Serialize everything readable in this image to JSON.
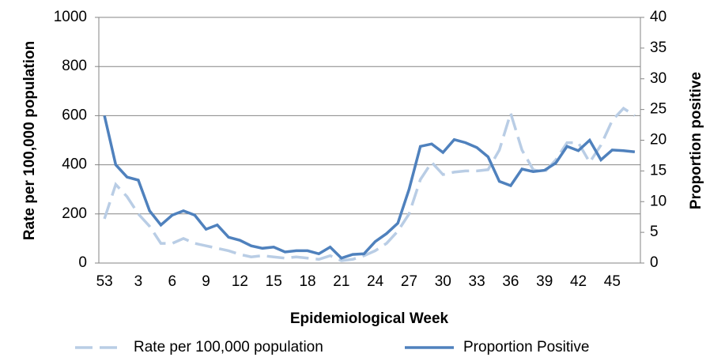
{
  "chart_data": {
    "type": "line",
    "x_label": "Epidemiological Week",
    "y_label": "Rate per 100,000 population",
    "y2_label": "Proportion positive",
    "categories": [
      "53",
      null,
      null,
      "3",
      null,
      null,
      "6",
      null,
      null,
      "9",
      null,
      null,
      "12",
      null,
      null,
      "15",
      null,
      null,
      "18",
      null,
      null,
      "21",
      null,
      null,
      "24",
      null,
      null,
      "27",
      null,
      null,
      "30",
      null,
      null,
      "33",
      null,
      null,
      "36",
      null,
      null,
      "39",
      null,
      null,
      "42",
      null,
      null,
      "45",
      null,
      null
    ],
    "series": [
      {
        "name": "Rate per 100,000 population",
        "color": "#b9cde5",
        "dashed": true,
        "values": [
          180,
          320,
          270,
          200,
          150,
          80,
          80,
          100,
          80,
          70,
          60,
          50,
          35,
          25,
          30,
          25,
          20,
          25,
          20,
          15,
          30,
          10,
          15,
          30,
          50,
          80,
          130,
          200,
          340,
          410,
          360,
          370,
          375,
          375,
          380,
          460,
          610,
          460,
          380,
          370,
          420,
          490,
          490,
          410,
          480,
          580,
          630,
          600
        ]
      },
      {
        "name": "Proportion Positive",
        "color": "#4f81bd",
        "axis": "y2",
        "values": [
          24,
          16,
          14,
          13.5,
          8.5,
          6.2,
          7.8,
          8.5,
          7.8,
          5.5,
          6.2,
          4.2,
          3.7,
          2.8,
          2.4,
          2.6,
          1.8,
          2.0,
          2.0,
          1.5,
          2.6,
          0.8,
          1.4,
          1.5,
          3.5,
          4.8,
          6.5,
          12,
          19,
          19.4,
          18,
          20.1,
          19.6,
          18.8,
          17.3,
          13.3,
          12.6,
          15.3,
          14.9,
          15.1,
          16.3,
          19,
          18.3,
          20,
          16.8,
          18.4,
          18.3,
          18.1
        ]
      }
    ],
    "ylim": [
      0,
      1000
    ],
    "yticks": [
      0,
      200,
      400,
      600,
      800,
      1000
    ],
    "y2lim": [
      0,
      40
    ],
    "y2ticks": [
      0,
      5,
      10,
      15,
      20,
      25,
      30,
      35,
      40
    ],
    "grid": true
  }
}
